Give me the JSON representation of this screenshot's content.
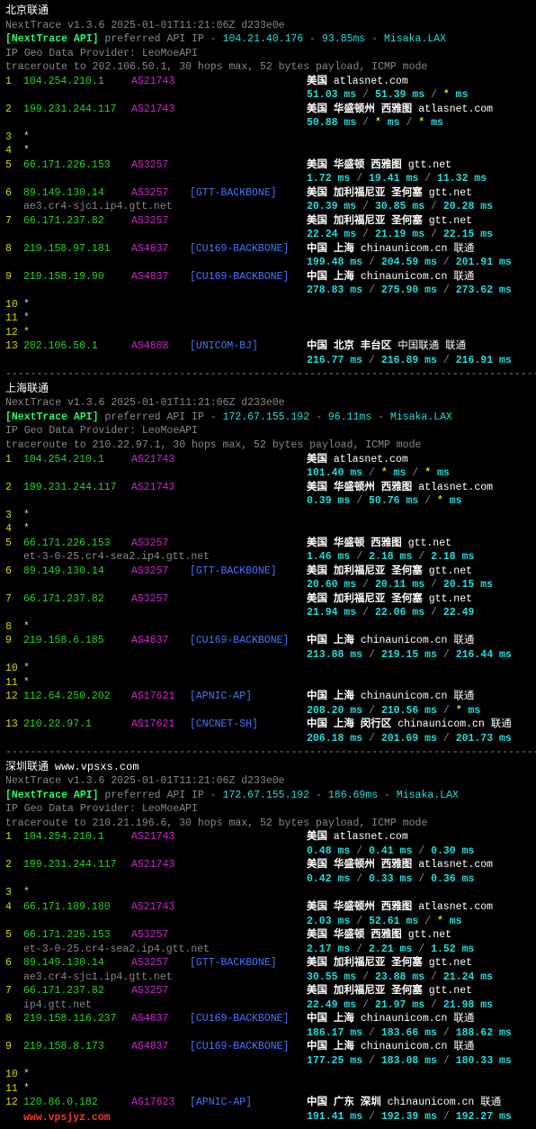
{
  "watermark1": "www.vpsxs.com",
  "watermark2": "www.vpsjyz.com",
  "sections": [
    {
      "title": "北京联通",
      "header_line": "NextTrace v1.3.6 2025-01-01T11:21:06Z d233e0e",
      "api_label": "[NextTrace API]",
      "api_text": " preferred API IP - ",
      "api_ip": "104.21.40.176",
      "api_lat": "93.85ms",
      "api_node": "Misaka.LAX",
      "geo": "IP Geo Data Provider: LeoMoeAPI",
      "trace": "traceroute to 202.106.50.1, 30 hops max, 52 bytes payload, ICMP mode",
      "hops": [
        {
          "n": "1",
          "ip": "104.254.210.1",
          "as": "AS21743",
          "bb": "",
          "loc": "美国   ",
          "isp": "atlasnet.com",
          "lat": "51.03 ms / 51.39 ms / * ms",
          "rdns": ""
        },
        {
          "n": "2",
          "ip": "199.231.244.117",
          "as": "AS21743",
          "bb": "",
          "loc": "美国 华盛顿州 西雅图 ",
          "isp": "atlasnet.com",
          "lat": "50.88 ms / * ms / * ms",
          "rdns": ""
        },
        {
          "n": "3",
          "ip": "*",
          "as": "",
          "bb": "",
          "loc": "",
          "isp": "",
          "lat": "",
          "rdns": ""
        },
        {
          "n": "4",
          "ip": "*",
          "as": "",
          "bb": "",
          "loc": "",
          "isp": "",
          "lat": "",
          "rdns": ""
        },
        {
          "n": "5",
          "ip": "66.171.226.153",
          "as": "AS3257",
          "bb": "",
          "loc": "美国 华盛顿 西雅图  ",
          "isp": "gtt.net",
          "lat": "1.72 ms / 19.41 ms / 11.32 ms",
          "rdns": ""
        },
        {
          "n": "6",
          "ip": "89.149.130.14",
          "as": "AS3257",
          "bb": "[GTT-BACKBONE]",
          "loc": "美国 加利福尼亚 圣何塞  ",
          "isp": "gtt.net",
          "lat": "20.39 ms / 30.85 ms / 20.28 ms",
          "rdns": "ae3.cr4-sjc1.ip4.gtt.net"
        },
        {
          "n": "7",
          "ip": "66.171.237.82",
          "as": "AS3257",
          "bb": "",
          "loc": "美国 加利福尼亚 圣何塞  ",
          "isp": "gtt.net",
          "lat": "22.24 ms / 21.19 ms / 22.15 ms",
          "rdns": ""
        },
        {
          "n": "8",
          "ip": "219.158.97.181",
          "as": "AS4837",
          "bb": "[CU169-BACKBONE]",
          "loc": "中国 上海   ",
          "isp": "chinaunicom.cn  联通",
          "lat": "199.48 ms / 204.59 ms / 201.91 ms",
          "rdns": ""
        },
        {
          "n": "9",
          "ip": "219.158.19.90",
          "as": "AS4837",
          "bb": "[CU169-BACKBONE]",
          "loc": "中国 上海   ",
          "isp": "chinaunicom.cn  联通",
          "lat": "278.83 ms / 275.90 ms / 273.62 ms",
          "rdns": ""
        },
        {
          "n": "10",
          "ip": "*",
          "as": "",
          "bb": "",
          "loc": "",
          "isp": "",
          "lat": "",
          "rdns": ""
        },
        {
          "n": "11",
          "ip": "*",
          "as": "",
          "bb": "",
          "loc": "",
          "isp": "",
          "lat": "",
          "rdns": ""
        },
        {
          "n": "12",
          "ip": "*",
          "as": "",
          "bb": "",
          "loc": "",
          "isp": "",
          "lat": "",
          "rdns": ""
        },
        {
          "n": "13",
          "ip": "202.106.50.1",
          "as": "AS4808",
          "bb": "[UNICOM-BJ]",
          "loc": "中国 北京  丰台区 ",
          "isp": "中国联通  联通",
          "lat": "216.77 ms / 216.89 ms / 216.91 ms",
          "rdns": ""
        }
      ]
    },
    {
      "title": "上海联通",
      "header_line": "NextTrace v1.3.6 2025-01-01T11:21:06Z d233e0e",
      "api_label": "[NextTrace API]",
      "api_text": " preferred API IP - ",
      "api_ip": "172.67.155.192",
      "api_lat": "96.11ms",
      "api_node": "Misaka.LAX",
      "geo": "IP Geo Data Provider: LeoMoeAPI",
      "trace": "traceroute to 210.22.97.1, 30 hops max, 52 bytes payload, ICMP mode",
      "hops": [
        {
          "n": "1",
          "ip": "104.254.210.1",
          "as": "AS21743",
          "bb": "",
          "loc": "美国   ",
          "isp": "atlasnet.com",
          "lat": "101.40 ms / * ms / * ms",
          "rdns": ""
        },
        {
          "n": "2",
          "ip": "199.231.244.117",
          "as": "AS21743",
          "bb": "",
          "loc": "美国 华盛顿州 西雅图 ",
          "isp": "atlasnet.com",
          "lat": "0.39 ms / 50.76 ms / * ms",
          "rdns": ""
        },
        {
          "n": "3",
          "ip": "*",
          "as": "",
          "bb": "",
          "loc": "",
          "isp": "",
          "lat": "",
          "rdns": ""
        },
        {
          "n": "4",
          "ip": "*",
          "as": "",
          "bb": "",
          "loc": "",
          "isp": "",
          "lat": "",
          "rdns": ""
        },
        {
          "n": "5",
          "ip": "66.171.226.153",
          "as": "AS3257",
          "bb": "",
          "loc": "美国 华盛顿 西雅图  ",
          "isp": "gtt.net",
          "lat": "1.46 ms / 2.18 ms / 2.18 ms",
          "rdns": "et-3-0-25.cr4-sea2.ip4.gtt.net"
        },
        {
          "n": "6",
          "ip": "89.149.130.14",
          "as": "AS3257",
          "bb": "[GTT-BACKBONE]",
          "loc": "美国 加利福尼亚 圣何塞  ",
          "isp": "gtt.net",
          "lat": "20.60 ms / 20.11 ms / 20.15 ms",
          "rdns": ""
        },
        {
          "n": "7",
          "ip": "66.171.237.82",
          "as": "AS3257",
          "bb": "",
          "loc": "美国 加利福尼亚 圣何塞  ",
          "isp": "gtt.net",
          "lat": "21.94 ms / 22.06 ms / 22.49",
          "rdns": ""
        },
        {
          "n": "8",
          "ip": "*",
          "as": "",
          "bb": "",
          "loc": "",
          "isp": "",
          "lat": "",
          "rdns": ""
        },
        {
          "n": "9",
          "ip": "219.158.6.185",
          "as": "AS4837",
          "bb": "[CU169-BACKBONE]",
          "loc": "中国 上海   ",
          "isp": "chinaunicom.cn  联通",
          "lat": "213.88 ms / 219.15 ms / 216.44 ms",
          "rdns": ""
        },
        {
          "n": "10",
          "ip": "*",
          "as": "",
          "bb": "",
          "loc": "",
          "isp": "",
          "lat": "",
          "rdns": ""
        },
        {
          "n": "11",
          "ip": "*",
          "as": "",
          "bb": "",
          "loc": "",
          "isp": "",
          "lat": "",
          "rdns": ""
        },
        {
          "n": "12",
          "ip": "112.64.250.202",
          "as": "AS17621",
          "bb": "[APNIC-AP]",
          "loc": "中国 上海   ",
          "isp": "chinaunicom.cn  联通",
          "lat": "208.20 ms / 210.56 ms / * ms",
          "rdns": ""
        },
        {
          "n": "13",
          "ip": "210.22.97.1",
          "as": "AS17621",
          "bb": "[CNCNET-SH]",
          "loc": "中国 上海  闵行区 ",
          "isp": "chinaunicom.cn  联通",
          "lat": "206.18 ms / 201.69 ms / 201.73 ms",
          "rdns": ""
        }
      ]
    },
    {
      "title": "深圳联通",
      "watermark": "www.vpsxs.com",
      "header_line": "NextTrace v1.3.6 2025-01-01T11:21:06Z d233e0e",
      "api_label": "[NextTrace API]",
      "api_text": " preferred API IP - ",
      "api_ip": "172.67.155.192",
      "api_lat": "186.69ms",
      "api_node": "Misaka.LAX",
      "geo": "IP Geo Data Provider: LeoMoeAPI",
      "trace": "traceroute to 210.21.196.6, 30 hops max, 52 bytes payload, ICMP mode",
      "hops": [
        {
          "n": "1",
          "ip": "104.254.210.1",
          "as": "AS21743",
          "bb": "",
          "loc": "美国   ",
          "isp": "atlasnet.com",
          "lat": "0.48 ms / 0.41 ms / 0.30 ms",
          "rdns": ""
        },
        {
          "n": "2",
          "ip": "199.231.244.117",
          "as": "AS21743",
          "bb": "",
          "loc": "美国 华盛顿州 西雅图 ",
          "isp": "atlasnet.com",
          "lat": "0.42 ms / 0.33 ms / 0.36 ms",
          "rdns": ""
        },
        {
          "n": "3",
          "ip": "*",
          "as": "",
          "bb": "",
          "loc": "",
          "isp": "",
          "lat": "",
          "rdns": ""
        },
        {
          "n": "4",
          "ip": "66.171.189.180",
          "as": "AS21743",
          "bb": "",
          "loc": "美国 华盛顿州 西雅图 ",
          "isp": "atlasnet.com",
          "lat": "2.03 ms / 52.61 ms / * ms",
          "rdns": ""
        },
        {
          "n": "5",
          "ip": "66.171.226.153",
          "as": "AS3257",
          "bb": "",
          "loc": "美国 华盛顿 西雅图  ",
          "isp": "gtt.net",
          "lat": "2.17 ms / 2.21 ms / 1.52 ms",
          "rdns": "et-3-0-25.cr4-sea2.ip4.gtt.net"
        },
        {
          "n": "6",
          "ip": "89.149.130.14",
          "as": "AS3257",
          "bb": "[GTT-BACKBONE]",
          "loc": "美国 加利福尼亚 圣何塞  ",
          "isp": "gtt.net",
          "lat": "30.55 ms / 23.88 ms / 21.24 ms",
          "rdns": "ae3.cr4-sjc1.ip4.gtt.net"
        },
        {
          "n": "7",
          "ip": "66.171.237.82",
          "as": "AS3257",
          "bb": "",
          "loc": "美国 加利福尼亚 圣何塞  ",
          "isp": "gtt.net",
          "lat": "22.49 ms / 21.97 ms / 21.98 ms",
          "rdns": "ip4.gtt.net"
        },
        {
          "n": "8",
          "ip": "219.158.116.237",
          "as": "AS4837",
          "bb": "[CU169-BACKBONE]",
          "loc": "中国 上海   ",
          "isp": "chinaunicom.cn  联通",
          "lat": "186.17 ms / 183.66 ms / 188.62 ms",
          "rdns": ""
        },
        {
          "n": "9",
          "ip": "219.158.8.173",
          "as": "AS4837",
          "bb": "[CU169-BACKBONE]",
          "loc": "中国 上海   ",
          "isp": "chinaunicom.cn  联通",
          "lat": "177.25 ms / 183.08 ms / 180.33 ms",
          "rdns": ""
        },
        {
          "n": "10",
          "ip": "*",
          "as": "",
          "bb": "",
          "loc": "",
          "isp": "",
          "lat": "",
          "rdns": ""
        },
        {
          "n": "11",
          "ip": "*",
          "as": "",
          "bb": "",
          "loc": "",
          "isp": "",
          "lat": "",
          "rdns": ""
        },
        {
          "n": "12",
          "ip": "120.86.0.182",
          "as": "AS17623",
          "bb": "[APNIC-AP]",
          "loc": "中国 广东 深圳  ",
          "isp": "chinaunicom.cn  联通",
          "lat": "191.41 ms / 192.39 ms / 192.27 ms",
          "rdns": ""
        }
      ]
    }
  ]
}
